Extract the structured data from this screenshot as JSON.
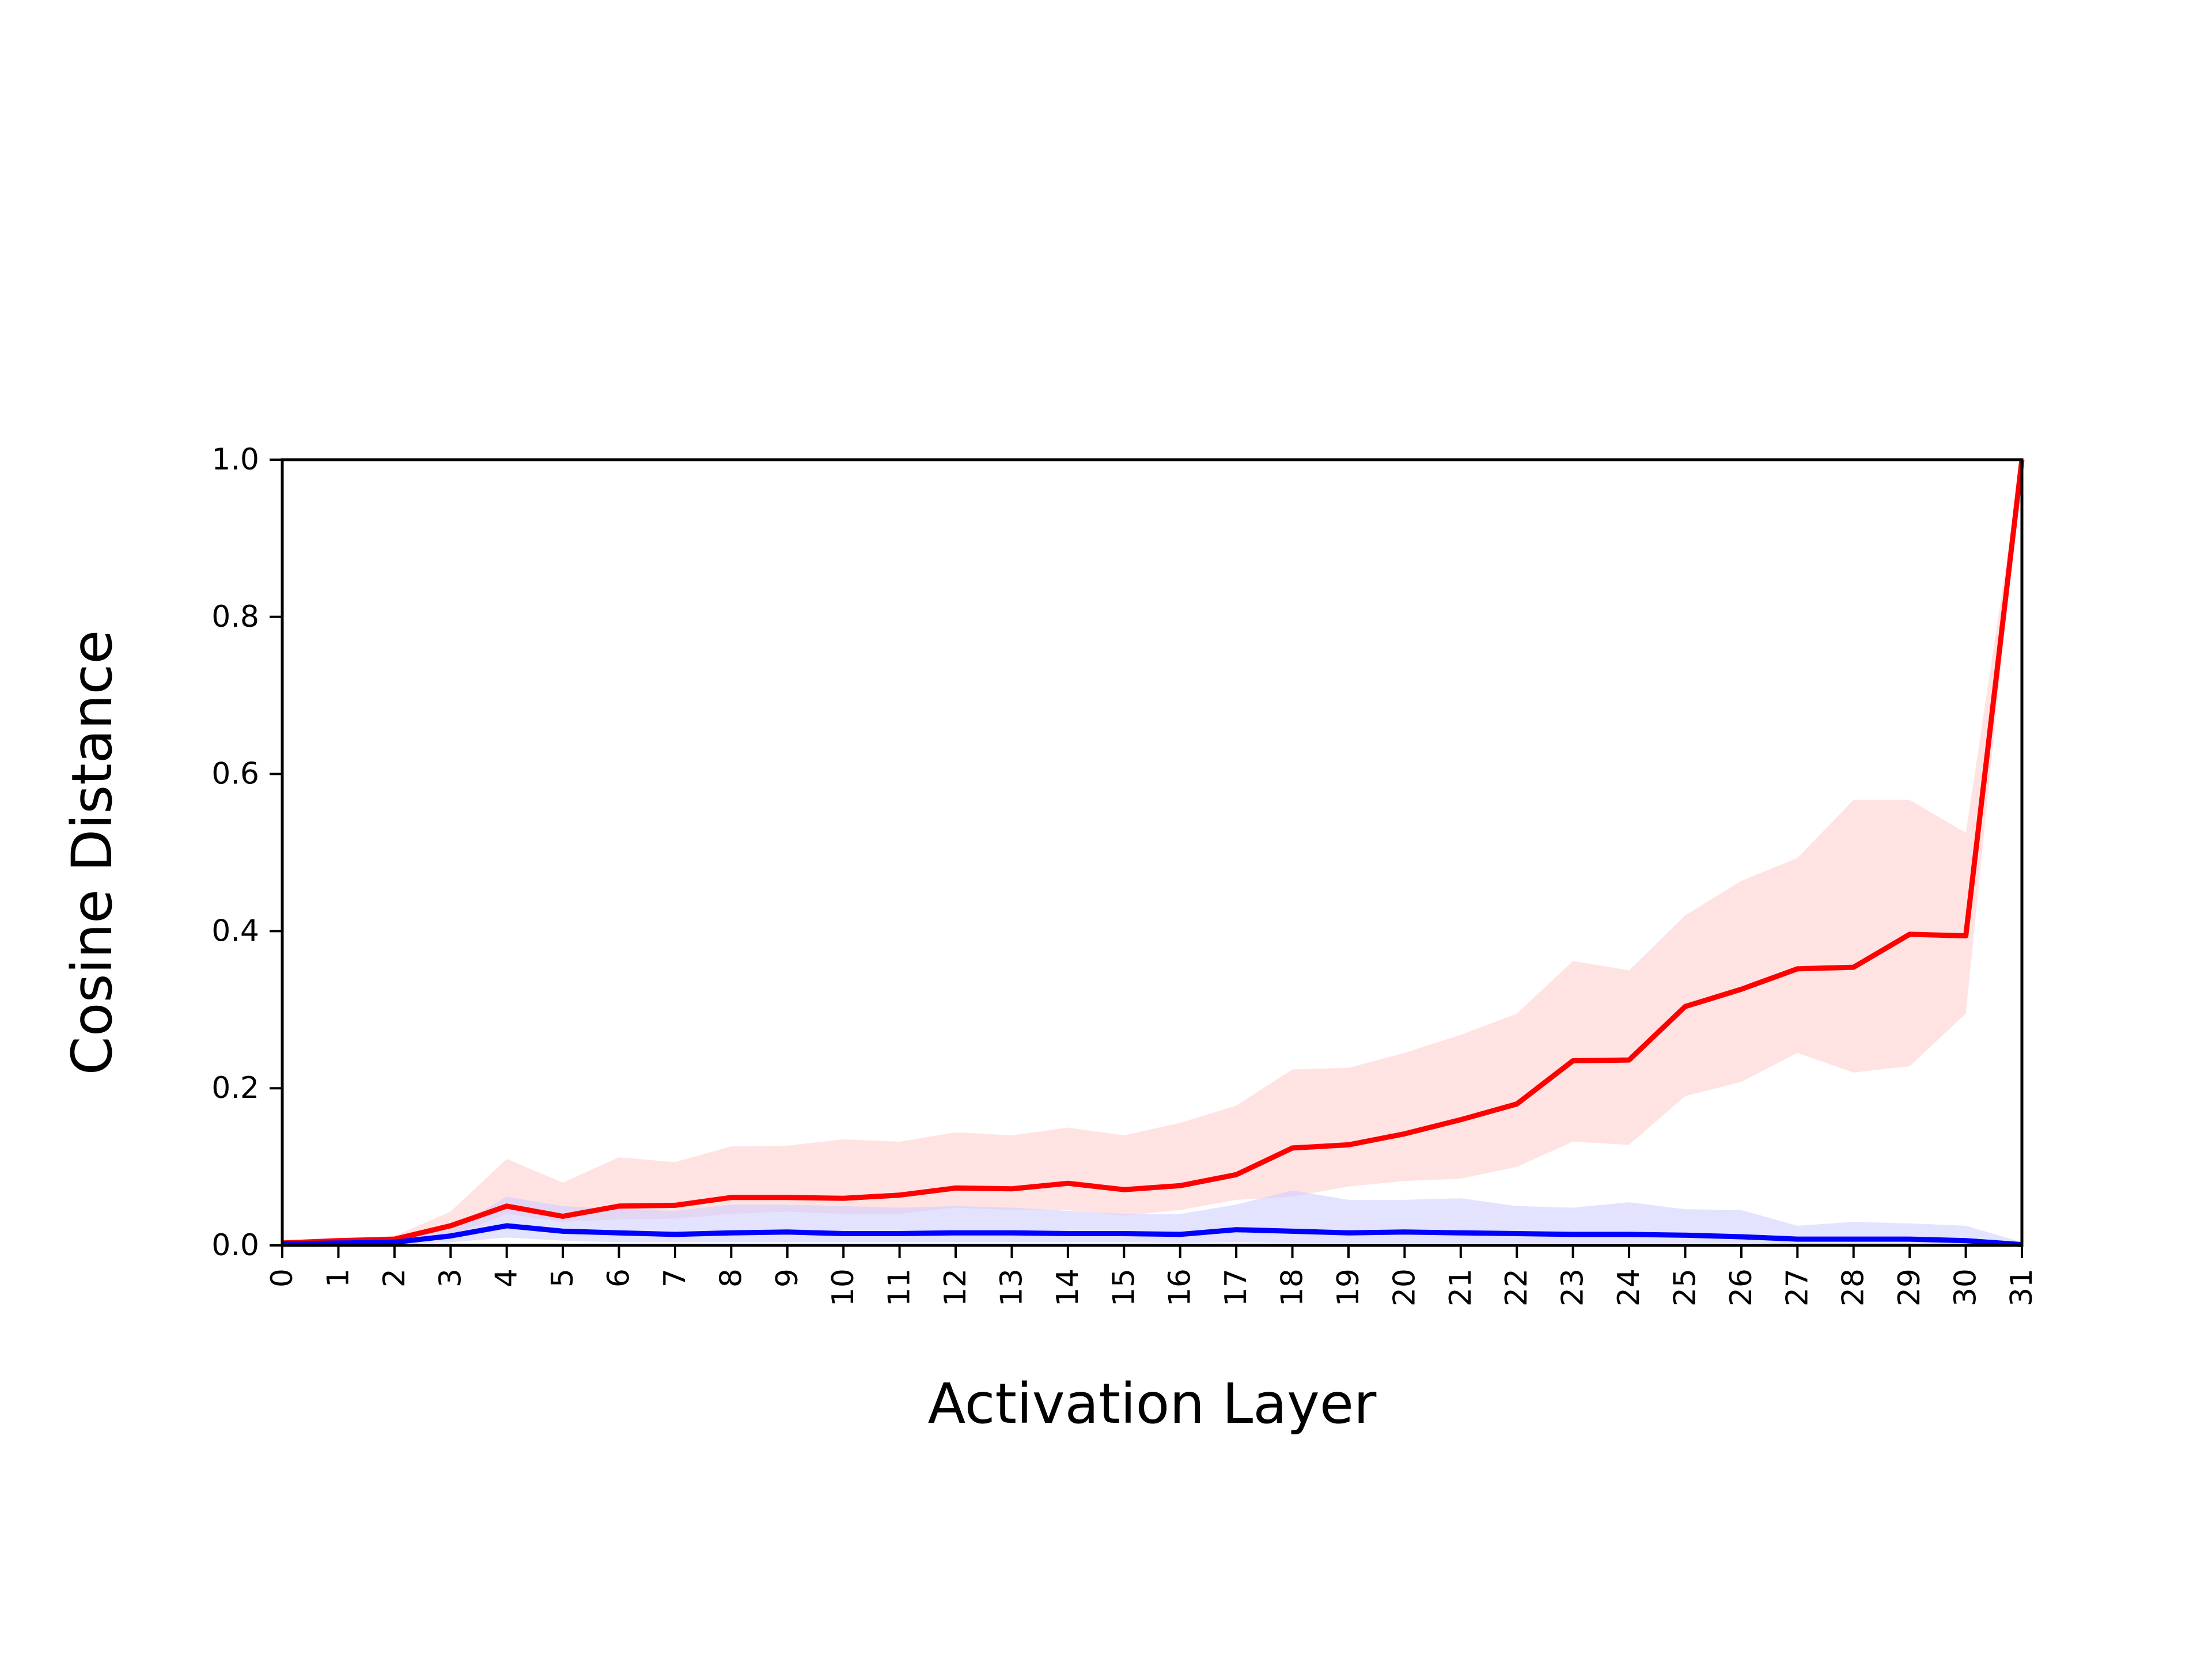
{
  "chart_data": {
    "type": "line",
    "title": "",
    "xlabel": "Activation Layer",
    "ylabel": "Cosine Distance",
    "xlim": [
      0,
      31
    ],
    "ylim": [
      0,
      1.0
    ],
    "grid": false,
    "x": [
      0,
      1,
      2,
      3,
      4,
      5,
      6,
      7,
      8,
      9,
      10,
      11,
      12,
      13,
      14,
      15,
      16,
      17,
      18,
      19,
      20,
      21,
      22,
      23,
      24,
      25,
      26,
      27,
      28,
      29,
      30,
      31
    ],
    "x_tick_labels": [
      "0",
      "1",
      "2",
      "3",
      "4",
      "5",
      "6",
      "7",
      "8",
      "9",
      "10",
      "11",
      "12",
      "13",
      "14",
      "15",
      "16",
      "17",
      "18",
      "19",
      "20",
      "21",
      "22",
      "23",
      "24",
      "25",
      "26",
      "27",
      "28",
      "29",
      "30",
      "31"
    ],
    "y_ticks": [
      0.0,
      0.2,
      0.4,
      0.6,
      0.8,
      1.0
    ],
    "y_tick_labels": [
      "0.0",
      "0.2",
      "0.4",
      "0.6",
      "0.8",
      "1.0"
    ],
    "series": [
      {
        "color": "#ff0000",
        "band_color": "#ffcccc",
        "values": [
          0.003,
          0.006,
          0.008,
          0.025,
          0.05,
          0.037,
          0.05,
          0.051,
          0.061,
          0.061,
          0.06,
          0.064,
          0.073,
          0.072,
          0.079,
          0.071,
          0.076,
          0.09,
          0.124,
          0.128,
          0.142,
          0.16,
          0.18,
          0.235,
          0.236,
          0.304,
          0.326,
          0.352,
          0.354,
          0.396,
          0.394,
          1.0
        ],
        "lower": [
          0.003,
          0.004,
          0.006,
          0.012,
          0.04,
          0.03,
          0.033,
          0.034,
          0.04,
          0.043,
          0.04,
          0.04,
          0.048,
          0.045,
          0.045,
          0.038,
          0.045,
          0.058,
          0.062,
          0.075,
          0.082,
          0.085,
          0.1,
          0.132,
          0.128,
          0.19,
          0.208,
          0.245,
          0.22,
          0.228,
          0.295,
          1.0
        ],
        "upper": [
          0.003,
          0.008,
          0.012,
          0.043,
          0.11,
          0.08,
          0.112,
          0.106,
          0.126,
          0.127,
          0.135,
          0.132,
          0.144,
          0.14,
          0.15,
          0.14,
          0.156,
          0.178,
          0.224,
          0.226,
          0.245,
          0.268,
          0.295,
          0.362,
          0.35,
          0.42,
          0.464,
          0.493,
          0.567,
          0.567,
          0.525,
          1.0
        ]
      },
      {
        "color": "#0000ff",
        "band_color": "#ccccff",
        "values": [
          0.002,
          0.003,
          0.004,
          0.012,
          0.025,
          0.018,
          0.016,
          0.014,
          0.016,
          0.017,
          0.015,
          0.015,
          0.016,
          0.016,
          0.015,
          0.015,
          0.014,
          0.02,
          0.018,
          0.016,
          0.017,
          0.016,
          0.015,
          0.014,
          0.014,
          0.013,
          0.011,
          0.008,
          0.008,
          0.008,
          0.006,
          0.001
        ],
        "lower": [
          0.001,
          0.001,
          0.001,
          0.004,
          0.01,
          0.006,
          0.004,
          0.004,
          0.004,
          0.004,
          0.004,
          0.004,
          0.004,
          0.004,
          0.004,
          0.004,
          0.003,
          0.004,
          0.003,
          0.003,
          0.003,
          0.003,
          0.003,
          0.003,
          0.003,
          0.003,
          0.003,
          0.002,
          0.002,
          0.002,
          0.002,
          0.0
        ],
        "upper": [
          0.003,
          0.005,
          0.008,
          0.02,
          0.062,
          0.05,
          0.046,
          0.044,
          0.052,
          0.052,
          0.05,
          0.048,
          0.05,
          0.048,
          0.044,
          0.04,
          0.04,
          0.052,
          0.07,
          0.058,
          0.058,
          0.06,
          0.05,
          0.048,
          0.055,
          0.046,
          0.045,
          0.025,
          0.03,
          0.028,
          0.025,
          0.004
        ]
      }
    ]
  }
}
